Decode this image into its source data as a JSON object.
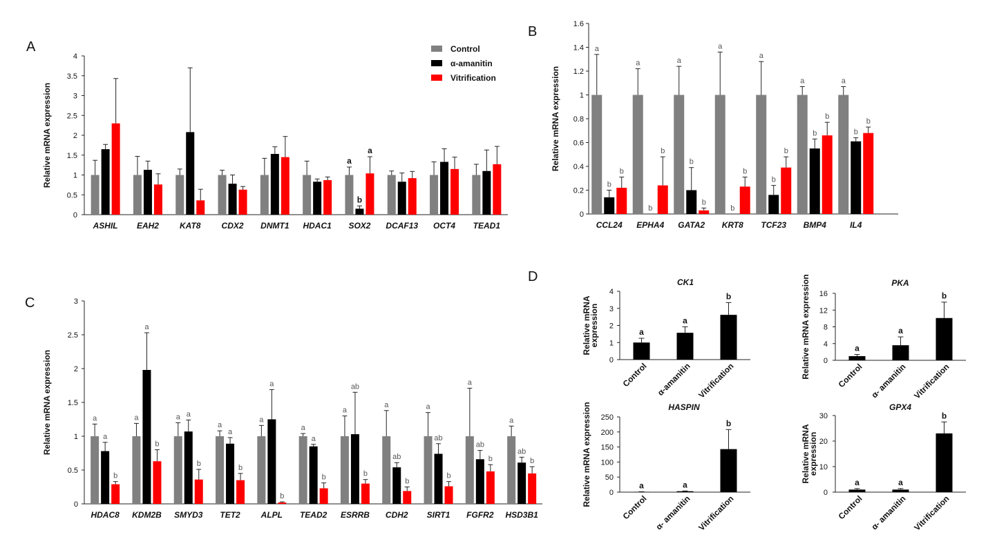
{
  "colors": {
    "control": "#808080",
    "amanitin": "#000000",
    "vitrification": "#ff0000"
  },
  "legend": [
    "Control",
    "α-amanitin",
    "Vitrification"
  ],
  "chart_data": [
    {
      "panel": "A",
      "type": "bar",
      "ylabel": "Relative mRNA expression",
      "ylim": [
        0,
        4
      ],
      "yticks": [
        "0",
        "0.5",
        "1",
        "1.5",
        "2",
        "2.5",
        "3",
        "3.5",
        "4"
      ],
      "categories": [
        "ASHIL",
        "EAH2",
        "KAT8",
        "CDX2",
        "DNMT1",
        "HDAC1",
        "SOX2",
        "DCAF13",
        "OCT4",
        "TEAD1"
      ],
      "series": [
        {
          "name": "Control",
          "values": [
            1,
            1,
            1,
            1,
            1,
            1,
            1,
            1,
            1,
            1
          ],
          "errors": [
            0.37,
            0.47,
            0.15,
            0.12,
            0.42,
            0.35,
            0.2,
            0.1,
            0.33,
            0.27
          ]
        },
        {
          "name": "α-amanitin",
          "values": [
            1.65,
            1.13,
            2.08,
            0.78,
            1.53,
            0.83,
            0.15,
            0.83,
            1.33,
            1.1
          ],
          "errors": [
            0.12,
            0.22,
            1.62,
            0.22,
            0.18,
            0.07,
            0.07,
            0.22,
            0.33,
            0.53
          ]
        },
        {
          "name": "Vitrification",
          "values": [
            2.3,
            0.76,
            0.36,
            0.63,
            1.45,
            0.87,
            1.04,
            0.92,
            1.15,
            1.27
          ],
          "errors": [
            1.13,
            0.27,
            0.28,
            0.08,
            0.52,
            0.08,
            0.42,
            0.17,
            0.3,
            0.45
          ]
        }
      ],
      "labels": [
        {
          "category": 6,
          "series": 0,
          "text": "a"
        },
        {
          "category": 6,
          "series": 1,
          "text": "b"
        },
        {
          "category": 6,
          "series": 2,
          "text": "a"
        }
      ]
    },
    {
      "panel": "B",
      "type": "bar",
      "ylabel": "Relative mRNA expression",
      "ylim": [
        0,
        1.6
      ],
      "yticks": [
        "0",
        "0.2",
        "0.4",
        "0.6",
        "0.8",
        "1",
        "1.2",
        "1.4",
        "1.6"
      ],
      "categories": [
        "CCL24",
        "EPHA4",
        "GATA2",
        "KRT8",
        "TCF23",
        "BMP4",
        "IL4"
      ],
      "series": [
        {
          "name": "Control",
          "values": [
            1,
            1,
            1,
            1,
            1,
            1,
            1
          ],
          "errors": [
            0.34,
            0.22,
            0.24,
            0.36,
            0.28,
            0.07,
            0.07
          ]
        },
        {
          "name": "α-amanitin",
          "values": [
            0.14,
            0,
            0.2,
            0,
            0.16,
            0.55,
            0.61
          ],
          "errors": [
            0.06,
            0,
            0.19,
            0,
            0.08,
            0.08,
            0.03
          ]
        },
        {
          "name": "Vitrification",
          "values": [
            0.22,
            0.24,
            0.03,
            0.23,
            0.39,
            0.66,
            0.68
          ],
          "errors": [
            0.09,
            0.24,
            0.02,
            0.08,
            0.09,
            0.11,
            0.05
          ]
        }
      ],
      "labels": [
        {
          "category": 0,
          "series": 0,
          "text": "a"
        },
        {
          "category": 0,
          "series": 1,
          "text": "b"
        },
        {
          "category": 0,
          "series": 2,
          "text": "b"
        },
        {
          "category": 1,
          "series": 0,
          "text": "a"
        },
        {
          "category": 1,
          "series": 1,
          "text": "b"
        },
        {
          "category": 1,
          "series": 2,
          "text": "b"
        },
        {
          "category": 2,
          "series": 0,
          "text": "a"
        },
        {
          "category": 2,
          "series": 1,
          "text": "b"
        },
        {
          "category": 2,
          "series": 2,
          "text": "b"
        },
        {
          "category": 3,
          "series": 0,
          "text": "a"
        },
        {
          "category": 3,
          "series": 1,
          "text": "b"
        },
        {
          "category": 3,
          "series": 2,
          "text": "b"
        },
        {
          "category": 4,
          "series": 0,
          "text": "a"
        },
        {
          "category": 4,
          "series": 1,
          "text": "b"
        },
        {
          "category": 4,
          "series": 2,
          "text": "b"
        },
        {
          "category": 5,
          "series": 0,
          "text": "a"
        },
        {
          "category": 5,
          "series": 1,
          "text": "b"
        },
        {
          "category": 5,
          "series": 2,
          "text": "b"
        },
        {
          "category": 6,
          "series": 0,
          "text": "a"
        },
        {
          "category": 6,
          "series": 1,
          "text": "b"
        },
        {
          "category": 6,
          "series": 2,
          "text": "b"
        }
      ]
    },
    {
      "panel": "C",
      "type": "bar",
      "ylabel": "Relative mRNA expression",
      "ylim": [
        0,
        3
      ],
      "yticks": [
        "0",
        "0.5",
        "1",
        "1.5",
        "2",
        "2.5",
        "3"
      ],
      "categories": [
        "HDAC8",
        "KDM2B",
        "SMYD3",
        "TET2",
        "ALPL",
        "TEAD2",
        "ESRRB",
        "CDH2",
        "SIRT1",
        "FGFR2",
        "HSD3B1"
      ],
      "series": [
        {
          "name": "Control",
          "values": [
            1,
            1,
            1,
            1,
            1,
            1,
            1,
            1,
            1,
            1,
            1
          ],
          "errors": [
            0.18,
            0.19,
            0.2,
            0.08,
            0.16,
            0.04,
            0.3,
            0.38,
            0.35,
            0.71,
            0.15
          ]
        },
        {
          "name": "α-amanitin",
          "values": [
            0.78,
            1.98,
            1.07,
            0.89,
            1.25,
            0.85,
            1.03,
            0.54,
            0.74,
            0.66,
            0.61
          ]
        },
        {
          "name": "Vitrification",
          "values": [
            0.29,
            0.63,
            0.36,
            0.35,
            0.02,
            0.23,
            0.3,
            0.19,
            0.26,
            0.48,
            0.45
          ]
        }
      ],
      "errors_amanitin": [
        0.13,
        0.55,
        0.17,
        0.09,
        0.44,
        0.03,
        0.62,
        0.07,
        0.15,
        0.13,
        0.08
      ],
      "errors_vitrification": [
        0.04,
        0.17,
        0.15,
        0.1,
        0.01,
        0.08,
        0.06,
        0.06,
        0.07,
        0.1,
        0.1
      ],
      "labels": [
        {
          "category": 0,
          "series": 0,
          "text": "a"
        },
        {
          "category": 0,
          "series": 1,
          "text": "a"
        },
        {
          "category": 0,
          "series": 2,
          "text": "b"
        },
        {
          "category": 1,
          "series": 0,
          "text": "a"
        },
        {
          "category": 1,
          "series": 1,
          "text": "a"
        },
        {
          "category": 1,
          "series": 2,
          "text": "b"
        },
        {
          "category": 2,
          "series": 0,
          "text": "a"
        },
        {
          "category": 2,
          "series": 1,
          "text": "a"
        },
        {
          "category": 2,
          "series": 2,
          "text": "b"
        },
        {
          "category": 3,
          "series": 0,
          "text": "a"
        },
        {
          "category": 3,
          "series": 1,
          "text": "a"
        },
        {
          "category": 3,
          "series": 2,
          "text": "b"
        },
        {
          "category": 4,
          "series": 0,
          "text": "a"
        },
        {
          "category": 4,
          "series": 1,
          "text": "a"
        },
        {
          "category": 4,
          "series": 2,
          "text": "b"
        },
        {
          "category": 5,
          "series": 0,
          "text": "a"
        },
        {
          "category": 5,
          "series": 1,
          "text": "a"
        },
        {
          "category": 5,
          "series": 2,
          "text": "b"
        },
        {
          "category": 6,
          "series": 0,
          "text": "a"
        },
        {
          "category": 6,
          "series": 1,
          "text": "ab"
        },
        {
          "category": 6,
          "series": 2,
          "text": "b"
        },
        {
          "category": 7,
          "series": 0,
          "text": "a"
        },
        {
          "category": 7,
          "series": 1,
          "text": "ab"
        },
        {
          "category": 7,
          "series": 2,
          "text": "b"
        },
        {
          "category": 8,
          "series": 0,
          "text": "a"
        },
        {
          "category": 8,
          "series": 1,
          "text": "ab"
        },
        {
          "category": 8,
          "series": 2,
          "text": "b"
        },
        {
          "category": 9,
          "series": 0,
          "text": "a"
        },
        {
          "category": 9,
          "series": 1,
          "text": "ab"
        },
        {
          "category": 9,
          "series": 2,
          "text": "b"
        },
        {
          "category": 10,
          "series": 0,
          "text": "a"
        },
        {
          "category": 10,
          "series": 1,
          "text": "ab"
        },
        {
          "category": 10,
          "series": 2,
          "text": "b"
        }
      ]
    },
    {
      "panel": "D",
      "type": "bar",
      "title": "CK1",
      "ylabel": [
        "Relative mRNA",
        "expression"
      ],
      "ylim": [
        0,
        4
      ],
      "yticks": [
        "0",
        "1",
        "2",
        "3",
        "4"
      ],
      "categories": [
        "Control",
        "α-amanitin",
        "Vitrification"
      ],
      "values": [
        1,
        1.57,
        2.62
      ],
      "errors": [
        0.25,
        0.35,
        0.72
      ],
      "labels": [
        "a",
        "a",
        "b"
      ]
    },
    {
      "panel": "D",
      "type": "bar",
      "title": "PKA",
      "ylabel": [
        "Relative mRNA expression"
      ],
      "ylim": [
        0,
        16
      ],
      "yticks": [
        "0",
        "4",
        "8",
        "12",
        "16"
      ],
      "categories": [
        "Control",
        "α- amanitin",
        "Vitrification"
      ],
      "values": [
        1,
        3.6,
        10.1
      ],
      "errors": [
        0.4,
        2,
        3.8
      ],
      "labels": [
        "a",
        "a",
        "b"
      ]
    },
    {
      "panel": "D",
      "type": "bar",
      "title": "HASPIN",
      "ylabel": [
        "Relative mRNA expression"
      ],
      "ylim": [
        0,
        250
      ],
      "yticks": [
        "0",
        "50",
        "100",
        "150",
        "200",
        "250"
      ],
      "categories": [
        "Control",
        "α- amanitin",
        "Vitrification"
      ],
      "values": [
        1,
        3,
        143
      ],
      "errors": [
        0.5,
        1,
        65
      ],
      "labels": [
        "a",
        "a",
        "b"
      ]
    },
    {
      "panel": "D",
      "type": "bar",
      "title": "GPX4",
      "ylabel": [
        "Relative mRNA",
        "expression"
      ],
      "ylim": [
        0,
        30
      ],
      "yticks": [
        "0",
        "10",
        "20",
        "30"
      ],
      "categories": [
        "Control",
        "α- amanitin",
        "Vitrification"
      ],
      "values": [
        1,
        1,
        23
      ],
      "errors": [
        0.4,
        0.4,
        4.5
      ],
      "labels": [
        "a",
        "a",
        "b"
      ]
    }
  ]
}
